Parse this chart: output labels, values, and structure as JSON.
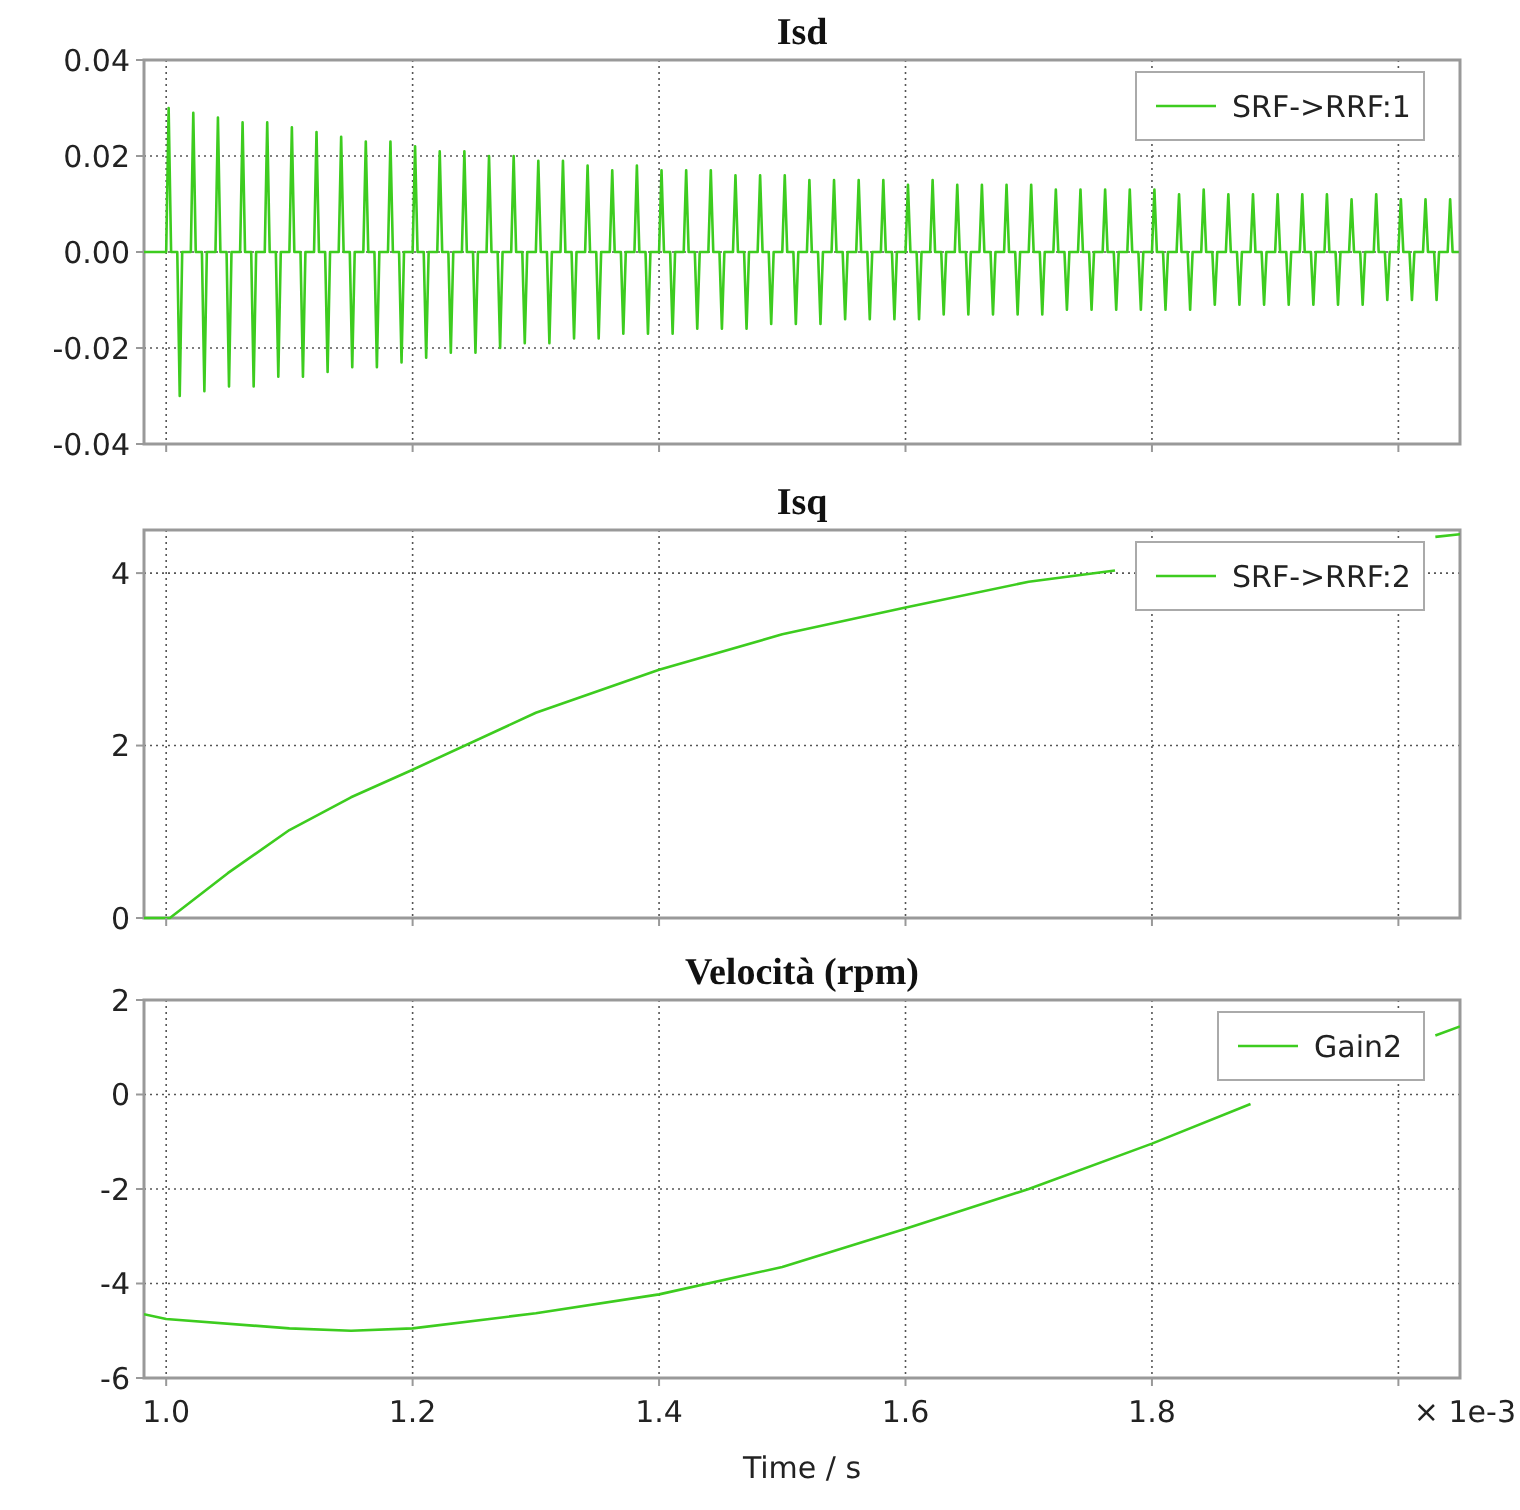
{
  "chart_data": [
    {
      "type": "line",
      "title": "Isd",
      "tick_labels": "y",
      "grid": true,
      "legend": "top right",
      "xlim": [
        0.982,
        2.05
      ],
      "ylim": [
        -0.04,
        0.04
      ],
      "yticks": [
        -0.04,
        -0.02,
        {
          "value": 0,
          "label": "0.00"
        },
        0.02,
        0.04
      ],
      "series": [
        {
          "name": "SRF->RRF:1",
          "color": "#3dcc1f",
          "x": [
            0.982,
            1.0,
            1.002,
            1.004,
            1.009,
            1.011,
            1.013,
            1.02,
            1.022,
            1.024,
            1.029,
            1.031,
            1.033,
            1.04,
            1.042,
            1.044,
            1.049,
            1.051,
            1.053,
            1.06,
            1.062,
            1.064,
            1.069,
            1.071,
            1.073,
            1.08,
            1.082,
            1.084,
            1.089,
            1.091,
            1.093,
            1.1,
            1.102,
            1.104,
            1.109,
            1.111,
            1.113,
            1.12,
            1.122,
            1.124,
            1.129,
            1.131,
            1.133,
            1.14,
            1.142,
            1.144,
            1.149,
            1.151,
            1.153,
            1.16,
            1.162,
            1.164,
            1.169,
            1.171,
            1.173,
            1.18,
            1.182,
            1.184,
            1.189,
            1.191,
            1.193,
            1.2,
            1.202,
            1.204,
            1.209,
            1.211,
            1.213,
            1.22,
            1.222,
            1.224,
            1.229,
            1.231,
            1.233,
            1.24,
            1.242,
            1.244,
            1.249,
            1.251,
            1.253,
            1.26,
            1.262,
            1.264,
            1.269,
            1.271,
            1.273,
            1.28,
            1.282,
            1.284,
            1.289,
            1.291,
            1.293,
            1.3,
            1.302,
            1.304,
            1.309,
            1.311,
            1.313,
            1.32,
            1.322,
            1.324,
            1.329,
            1.331,
            1.333,
            1.34,
            1.342,
            1.344,
            1.349,
            1.351,
            1.353,
            1.36,
            1.362,
            1.364,
            1.369,
            1.371,
            1.373,
            1.38,
            1.382,
            1.384,
            1.389,
            1.391,
            1.393,
            1.4,
            1.402,
            1.404,
            1.409,
            1.411,
            1.413,
            1.42,
            1.422,
            1.424,
            1.429,
            1.431,
            1.433,
            1.44,
            1.442,
            1.444,
            1.449,
            1.451,
            1.453,
            1.46,
            1.462,
            1.464,
            1.469,
            1.471,
            1.473,
            1.48,
            1.482,
            1.484,
            1.489,
            1.491,
            1.493,
            1.5,
            1.502,
            1.504,
            1.509,
            1.511,
            1.513,
            1.52,
            1.522,
            1.524,
            1.529,
            1.531,
            1.533,
            1.54,
            1.542,
            1.544,
            1.549,
            1.551,
            1.553,
            1.56,
            1.562,
            1.564,
            1.569,
            1.571,
            1.573,
            1.58,
            1.582,
            1.584,
            1.589,
            1.591,
            1.593,
            1.6,
            1.602,
            1.604,
            1.609,
            1.611,
            1.613,
            1.62,
            1.622,
            1.624,
            1.629,
            1.631,
            1.633,
            1.64,
            1.642,
            1.644,
            1.649,
            1.651,
            1.653,
            1.66,
            1.662,
            1.664,
            1.669,
            1.671,
            1.673,
            1.68,
            1.682,
            1.684,
            1.689,
            1.691,
            1.693,
            1.7,
            1.702,
            1.704,
            1.709,
            1.711,
            1.713,
            1.72,
            1.722,
            1.724,
            1.729,
            1.731,
            1.733,
            1.74,
            1.742,
            1.744,
            1.749,
            1.751,
            1.753,
            1.76,
            1.762,
            1.764,
            1.769,
            1.771,
            1.773,
            1.78,
            1.782,
            1.784,
            1.789,
            1.791,
            1.793,
            1.8,
            1.802,
            1.804,
            1.809,
            1.811,
            1.813,
            1.82,
            1.822,
            1.824,
            1.829,
            1.831,
            1.833,
            1.84,
            1.842,
            1.844,
            1.849,
            1.851,
            1.853,
            1.86,
            1.862,
            1.864,
            1.869,
            1.871,
            1.873,
            1.88,
            1.882,
            1.884,
            1.889,
            1.891,
            1.893,
            1.9,
            1.902,
            1.904,
            1.909,
            1.911,
            1.913,
            1.92,
            1.922,
            1.924,
            1.929,
            1.931,
            1.933,
            1.94,
            1.942,
            1.944,
            1.949,
            1.951,
            1.953,
            1.96,
            1.962,
            1.964,
            1.969,
            1.971,
            1.973,
            1.98,
            1.982,
            1.984,
            1.989,
            1.991,
            1.993,
            2.0,
            2.002,
            2.004,
            2.009,
            2.011,
            2.013,
            2.02,
            2.022,
            2.024,
            2.029,
            2.031,
            2.033,
            2.04,
            2.042,
            2.044,
            2.049
          ],
          "values": [
            0,
            0,
            0.03,
            0,
            0,
            -0.03,
            0,
            0,
            0.029,
            0,
            0,
            -0.029,
            0,
            0,
            0.028,
            0,
            0,
            -0.028,
            0,
            0,
            0.027,
            0,
            0,
            -0.028,
            0,
            0,
            0.027,
            0,
            0,
            -0.026,
            0,
            0,
            0.026,
            0,
            0,
            -0.026,
            0,
            0,
            0.025,
            0,
            0,
            -0.025,
            0,
            0,
            0.024,
            0,
            0,
            -0.024,
            0,
            0,
            0.023,
            0,
            0,
            -0.024,
            0,
            0,
            0.023,
            0,
            0,
            -0.023,
            0,
            0,
            0.022,
            0,
            0,
            -0.022,
            0,
            0,
            0.021,
            0,
            0,
            -0.021,
            0,
            0,
            0.021,
            0,
            0,
            -0.021,
            0,
            0,
            0.02,
            0,
            0,
            -0.02,
            0,
            0,
            0.02,
            0,
            0,
            -0.019,
            0,
            0,
            0.019,
            0,
            0,
            -0.019,
            0,
            0,
            0.019,
            0,
            0,
            -0.018,
            0,
            0,
            0.018,
            0,
            0,
            -0.018,
            0,
            0,
            0.017,
            0,
            0,
            -0.017,
            0,
            0,
            0.018,
            0,
            0,
            -0.017,
            0,
            0,
            0.017,
            0,
            0,
            -0.017,
            0,
            0,
            0.017,
            0,
            0,
            -0.016,
            0,
            0,
            0.017,
            0,
            0,
            -0.016,
            0,
            0,
            0.016,
            0,
            0,
            -0.016,
            0,
            0,
            0.016,
            0,
            0,
            -0.015,
            0,
            0,
            0.016,
            0,
            0,
            -0.015,
            0,
            0,
            0.015,
            0,
            0,
            -0.015,
            0,
            0,
            0.015,
            0,
            0,
            -0.014,
            0,
            0,
            0.015,
            0,
            0,
            -0.014,
            0,
            0,
            0.015,
            0,
            0,
            -0.014,
            0,
            0,
            0.014,
            0,
            0,
            -0.014,
            0,
            0,
            0.015,
            0,
            0,
            -0.013,
            0,
            0,
            0.014,
            0,
            0,
            -0.013,
            0,
            0,
            0.014,
            0,
            0,
            -0.013,
            0,
            0,
            0.014,
            0,
            0,
            -0.013,
            0,
            0,
            0.014,
            0,
            0,
            -0.013,
            0,
            0,
            0.013,
            0,
            0,
            -0.012,
            0,
            0,
            0.013,
            0,
            0,
            -0.012,
            0,
            0,
            0.013,
            0,
            0,
            -0.012,
            0,
            0,
            0.013,
            0,
            0,
            -0.012,
            0,
            0,
            0.013,
            0,
            0,
            -0.012,
            0,
            0,
            0.012,
            0,
            0,
            -0.012,
            0,
            0,
            0.013,
            0,
            0,
            -0.011,
            0,
            0,
            0.012,
            0,
            0,
            -0.011,
            0,
            0,
            0.012,
            0,
            0,
            -0.011,
            0,
            0,
            0.012,
            0,
            0,
            -0.011,
            0,
            0,
            0.012,
            0,
            0,
            -0.011,
            0,
            0,
            0.012,
            0,
            0,
            -0.011,
            0,
            0,
            0.011,
            0,
            0,
            -0.011,
            0,
            0,
            0.012,
            0,
            0,
            -0.01,
            0,
            0,
            0.011,
            0,
            0,
            -0.01,
            0,
            0,
            0.011,
            0,
            0,
            -0.01,
            0,
            0,
            0.011,
            0,
            0
          ]
        }
      ]
    },
    {
      "type": "line",
      "title": "Isq",
      "tick_labels": "y",
      "grid": true,
      "legend": "top right",
      "xlim": [
        0.982,
        2.05
      ],
      "ylim": [
        0,
        4.5
      ],
      "yticks": [
        0,
        2,
        4
      ],
      "series": [
        {
          "name": "SRF->RRF:2",
          "color": "#3dcc1f",
          "x": [
            0.982,
            1.0,
            1.003,
            1.05,
            1.1,
            1.15,
            1.2,
            1.3,
            1.4,
            1.5,
            1.6,
            1.7,
            1.77,
            1.9,
            2.03,
            2.05
          ],
          "values": [
            0,
            0,
            0,
            0.52,
            1.02,
            1.4,
            1.72,
            2.38,
            2.88,
            3.29,
            3.6,
            3.9,
            4.03,
            null,
            4.42,
            4.45
          ]
        }
      ]
    },
    {
      "type": "line",
      "title": "Velocità (rpm)",
      "xlabel": "Time / s",
      "annotations": [
        "× 1e-3"
      ],
      "grid": true,
      "legend": "top right",
      "xlim": [
        0.982,
        2.05
      ],
      "xticks": [
        {
          "value": 1,
          "label": "1.0"
        },
        1.2,
        1.4,
        1.6,
        1.8,
        {
          "value": 2,
          "label": null
        }
      ],
      "ylim": [
        -6,
        2
      ],
      "yticks": [
        -6,
        -4,
        -2,
        0,
        2
      ],
      "series": [
        {
          "name": "Gain2",
          "color": "#3dcc1f",
          "x": [
            0.982,
            1.0,
            1.1,
            1.15,
            1.2,
            1.3,
            1.4,
            1.5,
            1.6,
            1.7,
            1.8,
            1.88,
            1.95,
            2.03,
            2.05
          ],
          "values": [
            -4.65,
            -4.75,
            -4.95,
            -5.0,
            -4.95,
            -4.63,
            -4.23,
            -3.65,
            -2.84,
            -2.0,
            -1.04,
            -0.2,
            null,
            1.25,
            1.44
          ]
        }
      ]
    }
  ]
}
